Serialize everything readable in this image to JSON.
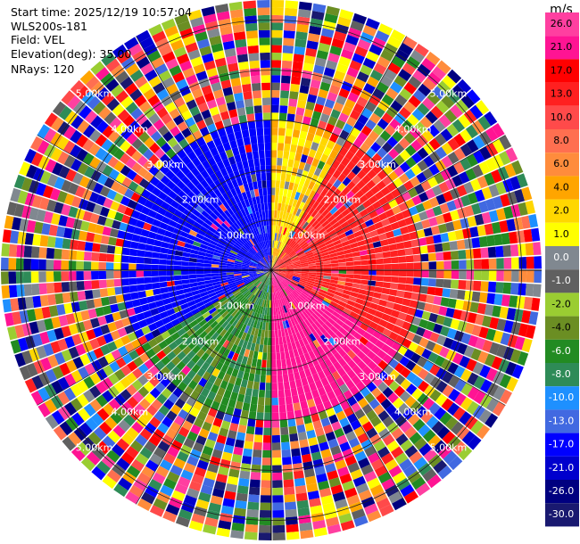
{
  "header": {
    "start_time": "Start time: 2025/12/19 10:57:04",
    "site": "WLS200s-181",
    "field": "Field: VEL",
    "elevation": "Elevation(deg): 35.00",
    "nrays": "NRays: 120"
  },
  "colorbar": {
    "unit": "m/s",
    "labels": [
      "26.0",
      "21.0",
      "17.0",
      "13.0",
      "10.0",
      "8.0",
      "6.0",
      "4.0",
      "2.0",
      "1.0",
      "0.0",
      "-1.0",
      "-2.0",
      "-4.0",
      "-6.0",
      "-8.0",
      "-10.0",
      "-13.0",
      "-17.0",
      "-21.0",
      "-26.0",
      "-30.0"
    ],
    "colors": [
      "#ff3fa0",
      "#ff1493",
      "#ff0000",
      "#ff2020",
      "#ff4a4a",
      "#ff6f50",
      "#ff8c3c",
      "#ffa500",
      "#ffd700",
      "#ffff00",
      "#808890",
      "#606060",
      "#9acd32",
      "#6b8e23",
      "#228b22",
      "#2e8b57",
      "#1e90ff",
      "#4169e1",
      "#0000ff",
      "#0000cd",
      "#000080",
      "#191970"
    ]
  },
  "chart_data": {
    "type": "heatmap",
    "projection": "polar PPI",
    "field": "VEL",
    "units": "m/s",
    "elevation_deg": 35.0,
    "n_rays": 120,
    "range_rings_km": [
      1.0,
      2.0,
      3.0,
      4.0,
      5.0
    ],
    "range_labels": [
      "1.00km",
      "2.00km",
      "3.00km",
      "4.00km",
      "5.00km"
    ],
    "max_range_km": 5.4,
    "coherent_range_km": 3.0,
    "coherent_pattern": [
      {
        "sector": "west-northwest",
        "azimuth_deg": [
          240,
          360
        ],
        "velocity_ms": -17
      },
      {
        "sector": "southwest",
        "azimuth_deg": [
          180,
          240
        ],
        "velocity_ms": -6
      },
      {
        "sector": "north-northeast",
        "azimuth_deg": [
          0,
          30
        ],
        "velocity_ms": 2
      },
      {
        "sector": "east",
        "azimuth_deg": [
          30,
          120
        ],
        "velocity_ms": 13
      },
      {
        "sector": "southeast",
        "azimuth_deg": [
          120,
          180
        ],
        "velocity_ms": 21
      }
    ],
    "far_range_pattern": "random multicolor noise"
  }
}
